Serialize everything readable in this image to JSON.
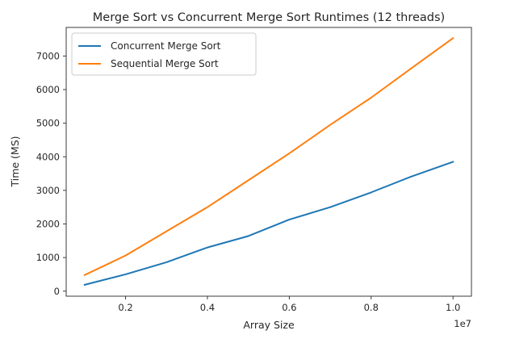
{
  "chart_data": {
    "type": "line",
    "title": "Merge Sort vs Concurrent Merge Sort Runtimes (12 threads)",
    "xlabel": "Array Size",
    "ylabel": "Time (MS)",
    "x_offset_label": "1e7",
    "x_unit_multiplier": 10000000,
    "x": [
      0.1,
      0.2,
      0.3,
      0.4,
      0.5,
      0.6,
      0.7,
      0.8,
      0.9,
      1.0
    ],
    "xlim": [
      0.055,
      1.045
    ],
    "ylim": [
      -150,
      7850
    ],
    "xticks": [
      0.2,
      0.4,
      0.6,
      0.8,
      1.0
    ],
    "xtick_labels": [
      "0.2",
      "0.4",
      "0.6",
      "0.8",
      "1.0"
    ],
    "yticks": [
      0,
      1000,
      2000,
      3000,
      4000,
      5000,
      6000,
      7000
    ],
    "ytick_labels": [
      "0",
      "1000",
      "2000",
      "3000",
      "4000",
      "5000",
      "6000",
      "7000"
    ],
    "grid": false,
    "legend_position": "upper-left",
    "series": [
      {
        "name": "Concurrent Merge Sort",
        "color": "#1f77b4",
        "values": [
          190,
          500,
          860,
          1300,
          1640,
          2130,
          2500,
          2940,
          3420,
          3850
        ]
      },
      {
        "name": "Sequential Merge Sort",
        "color": "#ff7f0e",
        "values": [
          480,
          1060,
          1780,
          2500,
          3300,
          4100,
          4950,
          5760,
          6650,
          7530
        ]
      }
    ]
  }
}
